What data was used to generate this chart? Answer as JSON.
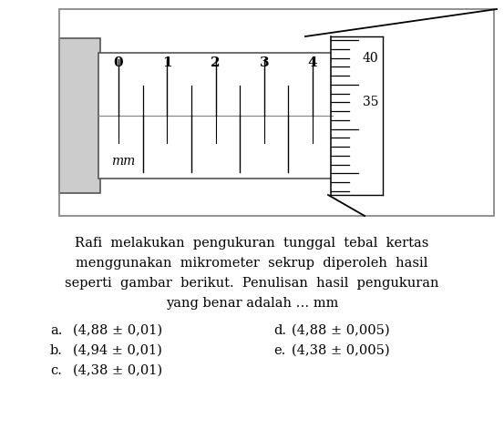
{
  "bg_color": "#ffffff",
  "fig_width": 5.53,
  "fig_height": 4.82,
  "dpi": 100,
  "main_scale_labels": [
    "0",
    "1",
    "2",
    "3",
    "4"
  ],
  "question_text_lines": [
    "Rafi  melakukan  pengukuran  tunggal  tebal  kertas",
    "menggunakan  mikrometer  sekrup  diperoleh  hasil",
    "seperti  gambar  berikut.  Penulisan  hasil  pengukuran",
    "yang benar adalah … mm"
  ],
  "options_left": [
    [
      "a.",
      "(4,88 ± 0,01)"
    ],
    [
      "b.",
      "(4,94 ± 0,01)"
    ],
    [
      "c.",
      "(4,38 ± 0,01)"
    ]
  ],
  "options_right": [
    [
      "d.",
      "(4,88 ± 0,005)"
    ],
    [
      "e.",
      "(4,38 ± 0,005)"
    ]
  ],
  "font_size_text": 10.5
}
